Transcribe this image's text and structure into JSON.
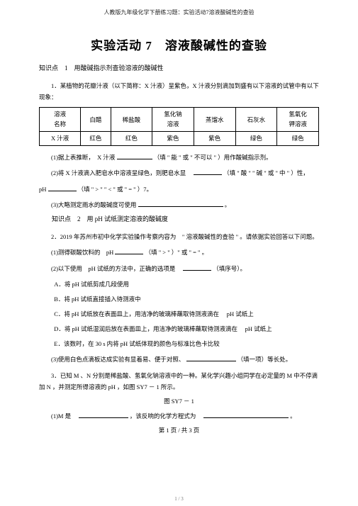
{
  "header": "人教版九年级化学下册练习题：实验活动7溶液酸碱性的查验",
  "title": "实验活动 7　溶液酸碱性的查验",
  "kp1": "知识点　1　用酸碱指示剂查验溶液的酸碱性",
  "q1_intro": "1．某植物的花瓣汁液（以下简称：X 汁液）呈紫色，X 汁液分别滴加到盛有以下溶液的试管中有以下现象：",
  "table": {
    "c1a": "溶液",
    "c1b": "名称",
    "c2": "白醋",
    "c3": "稀盐酸",
    "c4a": "氢化钠",
    "c4b": "溶液",
    "c5": "蒸馏水",
    "c6": "石灰水",
    "c7a": "氢氧化",
    "c7b": "钾溶液",
    "r2c1": "X 汁液",
    "r2c2": "红色",
    "r2c3": "红色",
    "r2c4": "紫色",
    "r2c5": "紫色",
    "r2c6": "绿色",
    "r2c7": "绿色"
  },
  "q1_1_a": "(1)据上表推断，　X 汁液",
  "q1_1_b": "（填 \" 能 \" 或 \" 不可以 \" ）用作酸碱指示剂。",
  "q1_2_a": "(2)将 X 汁液滴入肥皂水中溶液呈绿色，则肥皂水显　",
  "q1_2_b": "（填 \" 酸 \" \" 碱 \" 或 \" 中 \" ）性，",
  "q1_2_c": "pH",
  "q1_2_d": "（填 \" > \" \" < \" 或 \" = \" ）7。",
  "q1_3": "(3)大略测定雨水的酸碱度可使用",
  "q1_3_end": "。",
  "kp2": "知识点　2　用 pH 试纸测定溶液的酸碱度",
  "q2_intro_a": "2．2019 年苏州市初中化学实验操作考察内容为　\" 溶液酸碱性的查验 \" 。请依据实验回答以下问题。",
  "q2_1_a": "(1)测得碳酸饮料的　pH",
  "q2_1_b": "（填 \" > \" ）\" 或 \" = \" 。",
  "q2_2_a": "(2)以下使用　pH 试纸的方法中，正确的选项是　",
  "q2_2_b": "（填序号）。",
  "choiceA": "A．将 pH 试纸剪成几段使用",
  "choiceB": "B．将 pH 试纸直接插入待测液中",
  "choiceC_a": "C．将 pH 试纸放在表面皿上，用洁净的玻璃棒蘸取待测液滴在",
  "choiceC_b": "pH 试纸上",
  "choiceD_a": "D．将 pH 试纸湿润后放在表面皿上，用洁净的玻璃棒蘸取待测液滴在",
  "choiceD_b": "pH 试纸上",
  "choiceE": "E．该数时，在 30 s 内将 pH 试纸体现的颜色与标准比色卡比较",
  "q2_3_a": "(3)使用白色点滴板达成实验有显着易、便于对照、",
  "q2_3_b": "（填一项）等长处。",
  "q3_intro_a": "3．已知 M 、N 分别是稀盐酸、氢氧化钠溶液中的一种。某化学兴趣小组同学在必定量的 M 中不停滴加 N ，并测定所得溶液的 pH ，如图 SY7 － 1 所示。",
  "fig_label": "图 SY7 － 1",
  "q3_1_a": "(1)M 是　",
  "q3_1_b": "，该反响的化学方程式为　",
  "q3_1_c": "。",
  "page_footer": "第 1 页 / 共 3 页",
  "tiny_footer": "1 / 3"
}
